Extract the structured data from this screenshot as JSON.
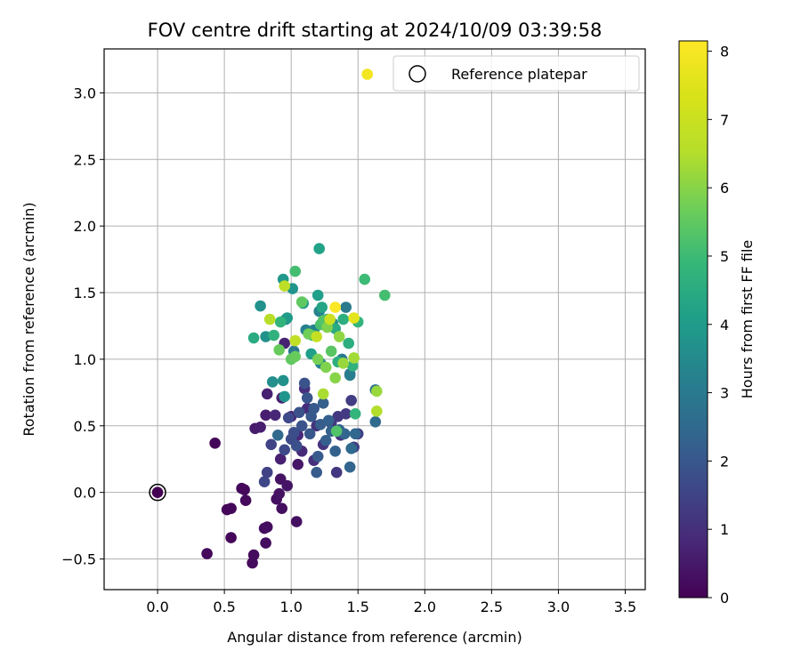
{
  "chart_data": {
    "type": "scatter",
    "title": "FOV centre drift starting at 2024/10/09 03:39:58",
    "xlabel": "Angular distance from reference (arcmin)",
    "ylabel": "Rotation from reference (arcmin)",
    "xlim": [
      -0.4,
      3.65
    ],
    "ylim": [
      -0.73,
      3.33
    ],
    "xticks": [
      0.0,
      0.5,
      1.0,
      1.5,
      2.0,
      2.5,
      3.0,
      3.5
    ],
    "xtick_labels": [
      "0.0",
      "0.5",
      "1.0",
      "1.5",
      "2.0",
      "2.5",
      "3.0",
      "3.5"
    ],
    "yticks": [
      -0.5,
      0.0,
      0.5,
      1.0,
      1.5,
      2.0,
      2.5,
      3.0
    ],
    "ytick_labels": [
      "−0.5",
      "0.0",
      "0.5",
      "1.0",
      "1.5",
      "2.0",
      "2.5",
      "3.0"
    ],
    "grid": true,
    "legend": {
      "location": "upper right",
      "label": "Reference platepar"
    },
    "reference_point": {
      "x": 0.0,
      "y": 0.0
    },
    "colorbar": {
      "label": "Hours from first FF file",
      "range": [
        0,
        8.15
      ],
      "ticks": [
        0,
        1,
        2,
        3,
        4,
        5,
        6,
        7,
        8
      ],
      "tick_labels": [
        "0",
        "1",
        "2",
        "3",
        "4",
        "5",
        "6",
        "7",
        "8"
      ],
      "colormap": "viridis"
    },
    "points": [
      [
        0.0,
        0.0,
        0.0
      ],
      [
        0.43,
        0.37,
        0.1
      ],
      [
        0.37,
        -0.46,
        0.15
      ],
      [
        0.52,
        -0.13,
        0.1
      ],
      [
        0.55,
        -0.12,
        0.1
      ],
      [
        0.55,
        -0.34,
        0.12
      ],
      [
        0.63,
        0.03,
        0.15
      ],
      [
        0.65,
        0.02,
        0.15
      ],
      [
        0.66,
        -0.06,
        0.18
      ],
      [
        0.71,
        -0.53,
        0.2
      ],
      [
        0.72,
        -0.47,
        0.2
      ],
      [
        0.8,
        -0.27,
        0.25
      ],
      [
        0.82,
        -0.26,
        0.25
      ],
      [
        0.81,
        -0.38,
        0.25
      ],
      [
        0.89,
        -0.05,
        0.3
      ],
      [
        0.91,
        -0.01,
        0.35
      ],
      [
        0.93,
        -0.12,
        0.3
      ],
      [
        0.92,
        0.1,
        0.35
      ],
      [
        0.97,
        0.05,
        0.4
      ],
      [
        1.04,
        -0.22,
        0.3
      ],
      [
        1.05,
        0.21,
        0.45
      ],
      [
        0.73,
        0.48,
        0.55
      ],
      [
        0.77,
        0.49,
        0.6
      ],
      [
        0.81,
        0.58,
        0.6
      ],
      [
        0.82,
        0.74,
        0.65
      ],
      [
        0.92,
        0.25,
        0.65
      ],
      [
        0.93,
        0.71,
        0.7
      ],
      [
        0.95,
        1.12,
        0.7
      ],
      [
        0.88,
        0.58,
        0.8
      ],
      [
        1.0,
        0.57,
        0.8
      ],
      [
        1.05,
        0.43,
        0.85
      ],
      [
        1.08,
        0.31,
        0.9
      ],
      [
        1.12,
        0.63,
        0.95
      ],
      [
        1.17,
        0.24,
        1.0
      ],
      [
        1.1,
        0.78,
        1.0
      ],
      [
        1.19,
        0.5,
        1.05
      ],
      [
        1.24,
        0.36,
        1.1
      ],
      [
        1.3,
        0.52,
        1.15
      ],
      [
        1.34,
        0.15,
        1.15
      ],
      [
        1.35,
        0.57,
        1.2
      ],
      [
        1.37,
        0.43,
        1.2
      ],
      [
        1.41,
        0.59,
        1.25
      ],
      [
        1.45,
        0.69,
        1.3
      ],
      [
        1.5,
        0.44,
        1.35
      ],
      [
        1.47,
        0.34,
        1.4
      ],
      [
        0.82,
        0.15,
        1.45
      ],
      [
        0.85,
        0.36,
        1.5
      ],
      [
        0.8,
        0.08,
        1.55
      ],
      [
        0.95,
        0.32,
        1.6
      ],
      [
        0.98,
        0.56,
        1.65
      ],
      [
        1.0,
        0.4,
        1.7
      ],
      [
        1.02,
        0.45,
        1.75
      ],
      [
        1.04,
        0.35,
        1.8
      ],
      [
        1.06,
        0.6,
        1.85
      ],
      [
        1.08,
        0.5,
        1.9
      ],
      [
        1.1,
        0.82,
        1.9
      ],
      [
        1.12,
        0.71,
        1.95
      ],
      [
        1.14,
        0.44,
        2.0
      ],
      [
        1.15,
        0.57,
        2.0
      ],
      [
        1.17,
        0.63,
        2.05
      ],
      [
        1.19,
        0.15,
        2.1
      ],
      [
        1.2,
        0.27,
        2.1
      ],
      [
        1.22,
        0.51,
        2.15
      ],
      [
        1.24,
        0.67,
        2.2
      ],
      [
        1.26,
        0.39,
        2.2
      ],
      [
        1.28,
        0.54,
        2.25
      ],
      [
        1.3,
        0.46,
        2.3
      ],
      [
        1.33,
        0.31,
        2.3
      ],
      [
        1.36,
        0.47,
        2.35
      ],
      [
        1.4,
        0.44,
        2.4
      ],
      [
        1.44,
        0.19,
        2.4
      ],
      [
        1.48,
        0.44,
        2.45
      ],
      [
        0.9,
        0.43,
        2.5
      ],
      [
        1.44,
        0.89,
        2.6
      ],
      [
        1.45,
        0.33,
        2.5
      ],
      [
        1.63,
        0.53,
        2.55
      ],
      [
        1.63,
        0.77,
        2.8
      ],
      [
        1.02,
        1.06,
        2.9
      ],
      [
        1.38,
        1.0,
        3.0
      ],
      [
        1.44,
        0.88,
        3.1
      ],
      [
        1.41,
        1.39,
        3.0
      ],
      [
        0.96,
        1.3,
        3.1
      ],
      [
        1.11,
        1.22,
        3.2
      ],
      [
        1.17,
        1.22,
        3.3
      ],
      [
        1.21,
        1.36,
        3.3
      ],
      [
        1.31,
        1.27,
        3.4
      ],
      [
        1.22,
        0.97,
        3.2
      ],
      [
        0.86,
        0.83,
        3.6
      ],
      [
        0.94,
        0.84,
        3.7
      ],
      [
        0.95,
        0.72,
        3.8
      ],
      [
        0.77,
        1.4,
        3.7
      ],
      [
        0.81,
        1.17,
        3.7
      ],
      [
        0.94,
        1.6,
        3.9
      ],
      [
        0.97,
        1.31,
        4.0
      ],
      [
        1.01,
        1.53,
        3.8
      ],
      [
        1.09,
        1.42,
        4.0
      ],
      [
        1.15,
        1.04,
        4.1
      ],
      [
        1.2,
        1.48,
        4.1
      ],
      [
        1.21,
        1.83,
        4.2
      ],
      [
        1.23,
        1.39,
        4.3
      ],
      [
        1.27,
        1.3,
        4.4
      ],
      [
        1.33,
        1.23,
        4.5
      ],
      [
        1.35,
        0.98,
        4.6
      ],
      [
        1.39,
        1.3,
        4.6
      ],
      [
        1.43,
        1.12,
        4.6
      ],
      [
        1.46,
        0.95,
        4.7
      ],
      [
        1.48,
        0.59,
        4.8
      ],
      [
        1.5,
        1.28,
        4.8
      ],
      [
        1.55,
        1.6,
        5.0
      ],
      [
        1.7,
        1.48,
        5.1
      ],
      [
        1.03,
        1.66,
        5.1
      ],
      [
        1.16,
        1.18,
        5.0
      ],
      [
        1.22,
        1.26,
        5.2
      ],
      [
        1.24,
        1.29,
        5.3
      ],
      [
        1.34,
        0.46,
        5.3
      ],
      [
        1.3,
        1.06,
        5.4
      ],
      [
        0.72,
        1.16,
        4.5
      ],
      [
        0.87,
        1.18,
        4.7
      ],
      [
        0.92,
        1.28,
        4.8
      ],
      [
        0.91,
        1.07,
        5.6
      ],
      [
        1.0,
        1.0,
        5.5
      ],
      [
        1.03,
        1.02,
        5.6
      ],
      [
        1.08,
        1.43,
        5.5
      ],
      [
        1.13,
        1.19,
        5.7
      ],
      [
        1.2,
        1.0,
        5.8
      ],
      [
        1.26,
        0.94,
        5.9
      ],
      [
        1.27,
        1.24,
        5.9
      ],
      [
        1.33,
        0.86,
        6.0
      ],
      [
        1.36,
        1.17,
        6.1
      ],
      [
        1.39,
        0.97,
        6.2
      ],
      [
        1.47,
        1.01,
        6.3
      ],
      [
        1.24,
        0.74,
        6.4
      ],
      [
        1.64,
        0.61,
        6.5
      ],
      [
        1.64,
        0.76,
        6.2
      ],
      [
        0.84,
        1.3,
        6.6
      ],
      [
        0.95,
        1.55,
        6.7
      ],
      [
        1.03,
        1.14,
        6.8
      ],
      [
        1.19,
        1.17,
        6.9
      ],
      [
        1.29,
        1.3,
        7.0
      ],
      [
        1.47,
        1.31,
        7.6
      ],
      [
        1.33,
        1.39,
        8.1
      ],
      [
        1.57,
        3.14,
        7.9
      ]
    ]
  }
}
